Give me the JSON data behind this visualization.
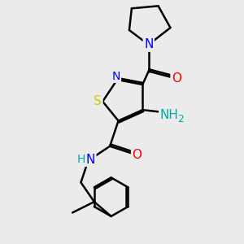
{
  "background_color": "#ebebeb",
  "atom_colors": {
    "C": "#000000",
    "N": "#0000ff",
    "O": "#ff0000",
    "S": "#cccc00",
    "H": "#00aaaa",
    "NH2": "#00aaaa"
  },
  "bond_color": "#000000",
  "bond_width": 1.8,
  "font_size_atom": 11,
  "font_size_small": 9
}
